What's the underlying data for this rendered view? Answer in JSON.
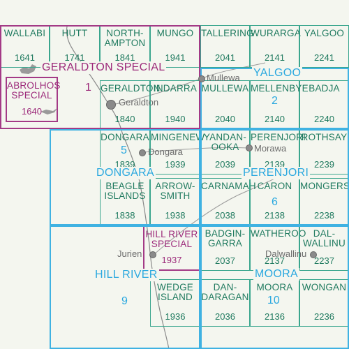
{
  "sheets": [
    {
      "id": "wallabi",
      "name": "WALLABI",
      "number": "1641",
      "special": false
    },
    {
      "id": "hutt",
      "name": "HUTT",
      "number": "1741",
      "special": false
    },
    {
      "id": "northampton",
      "name": "NORTH-\nAMPTON",
      "number": "1841",
      "special": false
    },
    {
      "id": "mungo",
      "name": "MUNGO",
      "number": "1941",
      "special": false
    },
    {
      "id": "tallering",
      "name": "TALLERING",
      "number": "2041",
      "special": false
    },
    {
      "id": "wuraga",
      "name": "WURARGA",
      "number": "2141",
      "special": false
    },
    {
      "id": "yalgoo",
      "name": "YALGOO",
      "number": "2241",
      "special": false
    },
    {
      "id": "abrolhos",
      "name": "ABROLHOS\nSPECIAL",
      "number": "1640",
      "special": true
    },
    {
      "id": "geraldton",
      "name": "GERALDTON",
      "number": "1840",
      "special": false
    },
    {
      "id": "indarra",
      "name": "INDARRA",
      "number": "1940",
      "special": false
    },
    {
      "id": "mullewa",
      "name": "MULLEWA",
      "number": "2040",
      "special": false
    },
    {
      "id": "mellenbye",
      "name": "MELLENBYE",
      "number": "2140",
      "special": false
    },
    {
      "id": "badja",
      "name": "BADJA",
      "number": "2240",
      "special": false
    },
    {
      "id": "dongara",
      "name": "DONGARA",
      "number": "1839",
      "special": false
    },
    {
      "id": "mingenew",
      "name": "MINGENEW",
      "number": "1939",
      "special": false
    },
    {
      "id": "yandanooka",
      "name": "YANDAN-\nOOKA",
      "number": "2039",
      "special": false
    },
    {
      "id": "perenjori",
      "name": "PERENJORI",
      "number": "2139",
      "special": false
    },
    {
      "id": "rothsay",
      "name": "ROTHSAY",
      "number": "2239",
      "special": false
    },
    {
      "id": "beagle",
      "name": "BEAGLE\nISLANDS",
      "number": "1838",
      "special": false
    },
    {
      "id": "arrowsmith",
      "name": "ARROW-\nSMITH",
      "number": "1938",
      "special": false
    },
    {
      "id": "carnamah",
      "name": "CARNAMAH",
      "number": "2038",
      "special": false
    },
    {
      "id": "caron",
      "name": "CARON",
      "number": "2138",
      "special": false
    },
    {
      "id": "mongers",
      "name": "MONGERS",
      "number": "2238",
      "special": false
    },
    {
      "id": "hillriverspecial",
      "name": "HILL RIVER\nSPECIAL",
      "number": "1937",
      "special": true
    },
    {
      "id": "badgingarra",
      "name": "BADGIN-\nGARRA",
      "number": "2037",
      "special": false
    },
    {
      "id": "watheroo",
      "name": "WATHEROO",
      "number": "2137",
      "special": false
    },
    {
      "id": "dalwallinu",
      "name": "DAL-\nWALLINU",
      "number": "2237",
      "special": false
    },
    {
      "id": "wedge",
      "name": "WEDGE\nISLAND",
      "number": "1936",
      "special": false
    },
    {
      "id": "dandaragan",
      "name": "DAN-\nDARAGAN",
      "number": "2036",
      "special": false
    },
    {
      "id": "moora_sheet",
      "name": "MOORA",
      "number": "2136",
      "special": false
    },
    {
      "id": "wongan",
      "name": "WONGAN",
      "number": "2236",
      "special": false
    }
  ],
  "groups": {
    "geraldton_special": "GERALDTON SPECIAL",
    "g1": "1",
    "yalgoo": "YALGOO",
    "g2": "2",
    "dongara": "DONGARA",
    "g5": "5",
    "perenjori": "PERENJORI",
    "g6": "6",
    "hill_river": "HILL RIVER",
    "g9": "9",
    "moora": "MOORA",
    "g10": "10"
  },
  "towns": {
    "geraldton": "Geraldton",
    "mullewa": "Mullewa",
    "dongara": "Dongara",
    "morawa": "Morawa",
    "jurien": "Jurien",
    "dalwallinu": "Dalwallinu"
  },
  "colors": {
    "sheet_text": "#1f7a5f",
    "special_text": "#9c2a7a",
    "group_border": "#3fb2e2",
    "group_text": "#2aa8df",
    "coastline": "#8a8a8a"
  }
}
